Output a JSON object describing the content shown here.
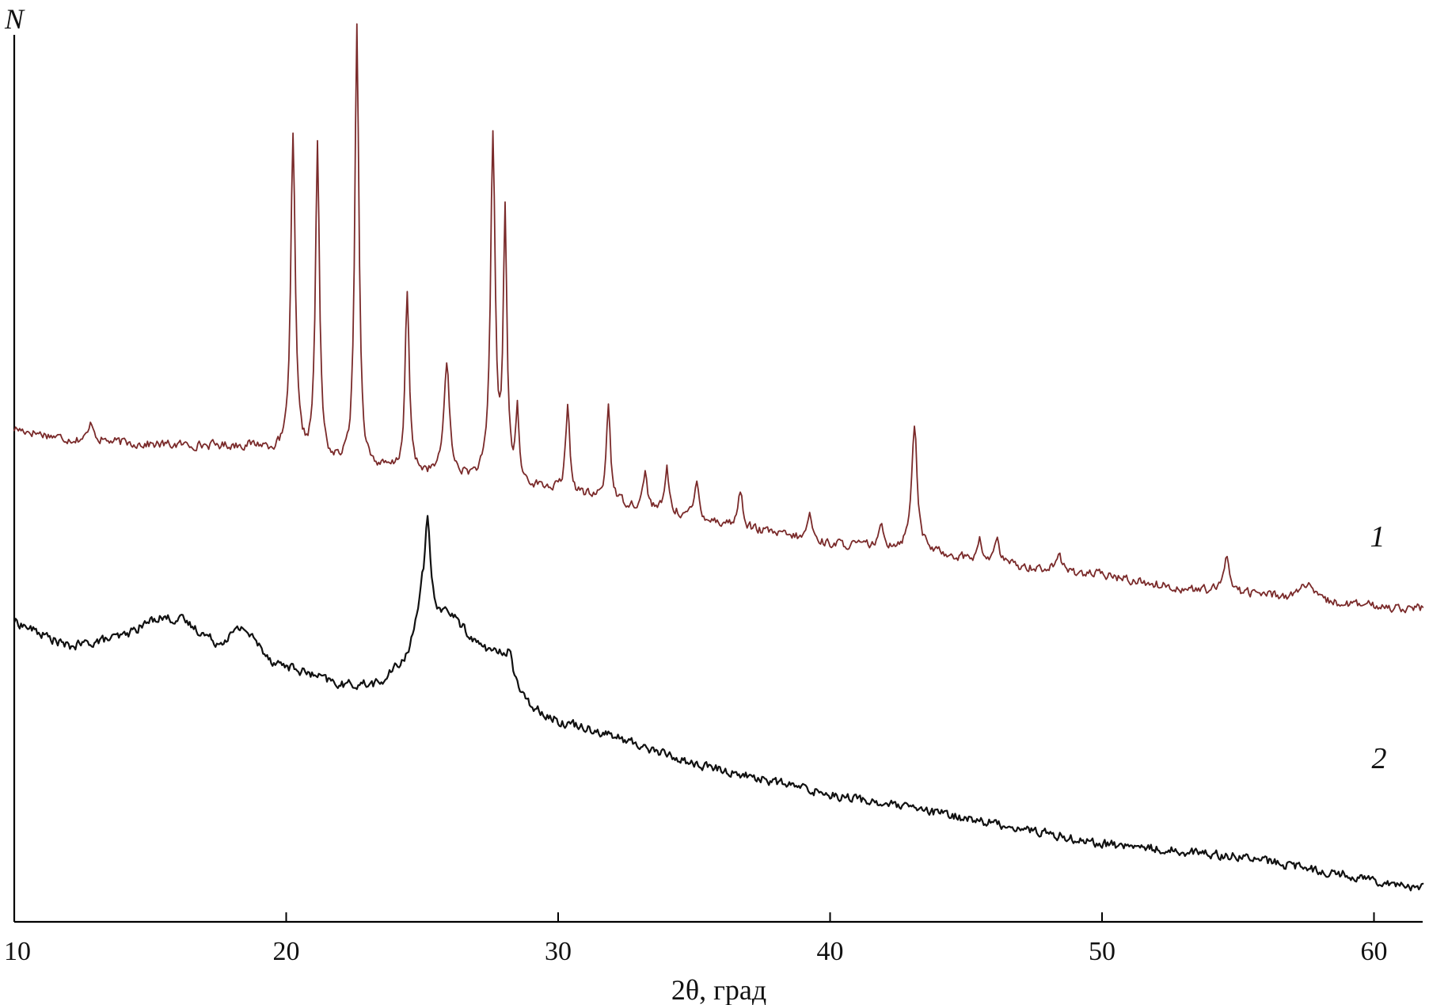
{
  "chart_data": {
    "type": "line",
    "title": "",
    "xlabel": "2θ, град",
    "ylabel": "N",
    "xlim": [
      10,
      62
    ],
    "ylim": [
      0,
      100
    ],
    "xticks": [
      10,
      20,
      30,
      40,
      50,
      60
    ],
    "grid": false,
    "legend": "none",
    "y_units": "arbitrary",
    "series": [
      {
        "name": "1",
        "color": "#7a2a2a",
        "baseline": [
          [
            10,
            55.6
          ],
          [
            12,
            54.4
          ],
          [
            15,
            53.8
          ],
          [
            19,
            53.6
          ],
          [
            19.8,
            52.7
          ],
          [
            21,
            51.6
          ],
          [
            23,
            51.0
          ],
          [
            25,
            50.4
          ],
          [
            28,
            49.5
          ],
          [
            30,
            48.6
          ],
          [
            33,
            46.7
          ],
          [
            35,
            45.6
          ],
          [
            37,
            44.3
          ],
          [
            40,
            42.6
          ],
          [
            43,
            42.1
          ],
          [
            46,
            40.4
          ],
          [
            50,
            39.1
          ],
          [
            53,
            37.5
          ],
          [
            56,
            36.9
          ],
          [
            58,
            36.0
          ],
          [
            60,
            35.6
          ],
          [
            61.8,
            35.3
          ]
        ],
        "peaks": [
          [
            12.85,
            2.0,
            0.12
          ],
          [
            20.25,
            35.8,
            0.1
          ],
          [
            21.15,
            35.4,
            0.09
          ],
          [
            22.6,
            50.1,
            0.09
          ],
          [
            24.45,
            20.1,
            0.09
          ],
          [
            25.9,
            12.8,
            0.12
          ],
          [
            27.6,
            38.5,
            0.1
          ],
          [
            28.05,
            29.4,
            0.08
          ],
          [
            28.5,
            7.8,
            0.07
          ],
          [
            30.35,
            9.5,
            0.09
          ],
          [
            31.85,
            10.8,
            0.09
          ],
          [
            33.2,
            4.1,
            0.09
          ],
          [
            34.0,
            5.2,
            0.08
          ],
          [
            35.1,
            4.1,
            0.09
          ],
          [
            36.7,
            4.1,
            0.1
          ],
          [
            39.25,
            3.1,
            0.09
          ],
          [
            41.9,
            2.2,
            0.1
          ],
          [
            43.1,
            14.3,
            0.12
          ],
          [
            45.5,
            2.2,
            0.1
          ],
          [
            46.15,
            3.1,
            0.1
          ],
          [
            48.4,
            2.0,
            0.1
          ],
          [
            54.6,
            4.2,
            0.12
          ],
          [
            57.5,
            1.8,
            0.3
          ]
        ],
        "values_note": "",
        "x": [],
        "y": []
      },
      {
        "name": "2",
        "color": "#111111",
        "baseline": [
          [
            10,
            33.9
          ],
          [
            12,
            31.0
          ],
          [
            14,
            32.2
          ],
          [
            15.3,
            34.4
          ],
          [
            16.2,
            34.0
          ],
          [
            17.5,
            31.4
          ],
          [
            18.4,
            33.3
          ],
          [
            19.5,
            29.4
          ],
          [
            22,
            26.7
          ],
          [
            23.5,
            26.9
          ],
          [
            24.5,
            30.2
          ],
          [
            25.0,
            37.3
          ],
          [
            25.5,
            35.0
          ],
          [
            26.0,
            34.9
          ],
          [
            27,
            31.4
          ],
          [
            28,
            29.8
          ],
          [
            28.8,
            24.8
          ],
          [
            30,
            22.6
          ],
          [
            31,
            22.0
          ],
          [
            35,
            17.8
          ],
          [
            40,
            14.4
          ],
          [
            45,
            11.7
          ],
          [
            50,
            8.8
          ],
          [
            55,
            7.4
          ],
          [
            61.8,
            3.8
          ]
        ],
        "peaks": [
          [
            25.2,
            9.2,
            0.1
          ],
          [
            28.2,
            2.3,
            0.12
          ]
        ],
        "values_note": "",
        "x": [],
        "y": []
      }
    ]
  },
  "series_labels": [
    "1",
    "2"
  ]
}
